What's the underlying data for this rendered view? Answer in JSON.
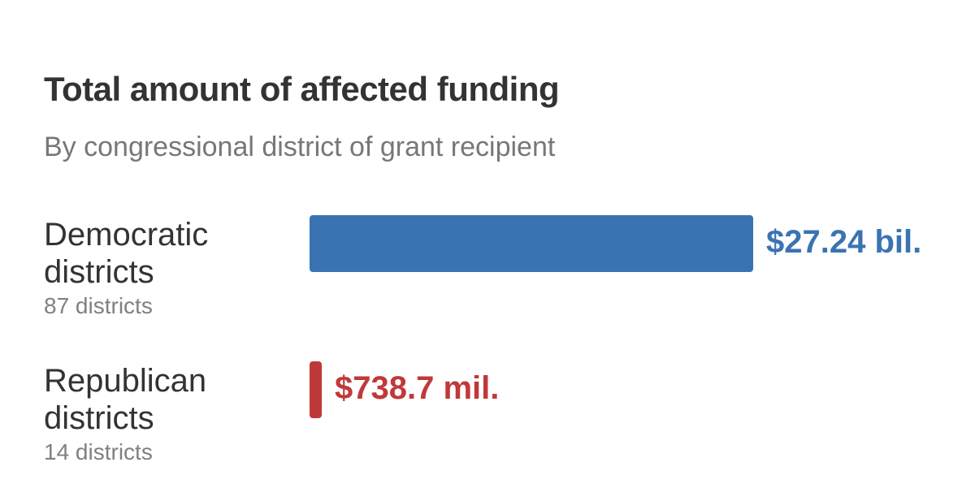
{
  "header": {
    "title": "Total amount of affected funding",
    "subtitle": "By congressional district of grant recipient"
  },
  "rows": [
    {
      "name_line1": "Democratic",
      "name_line2": "districts",
      "count": "87 districts",
      "value_label": "$27.24 bil.",
      "color": "#3a73b2"
    },
    {
      "name_line1": "Republican",
      "name_line2": "districts",
      "count": "14 districts",
      "value_label": "$738.7 mil.",
      "color": "#c0393a"
    }
  ],
  "chart_data": {
    "type": "bar",
    "orientation": "horizontal",
    "title": "Total amount of affected funding",
    "subtitle": "By congressional district of grant recipient",
    "categories": [
      "Democratic districts",
      "Republican districts"
    ],
    "category_notes": [
      "87 districts",
      "14 districts"
    ],
    "values": [
      27.24,
      0.7387
    ],
    "units": "billions of dollars",
    "data_labels": [
      "$27.24 bil.",
      "$738.7 mil."
    ],
    "colors": [
      "#3a73b2",
      "#c0393a"
    ],
    "xlim": [
      0,
      27.24
    ],
    "grid": false,
    "legend": "none"
  }
}
